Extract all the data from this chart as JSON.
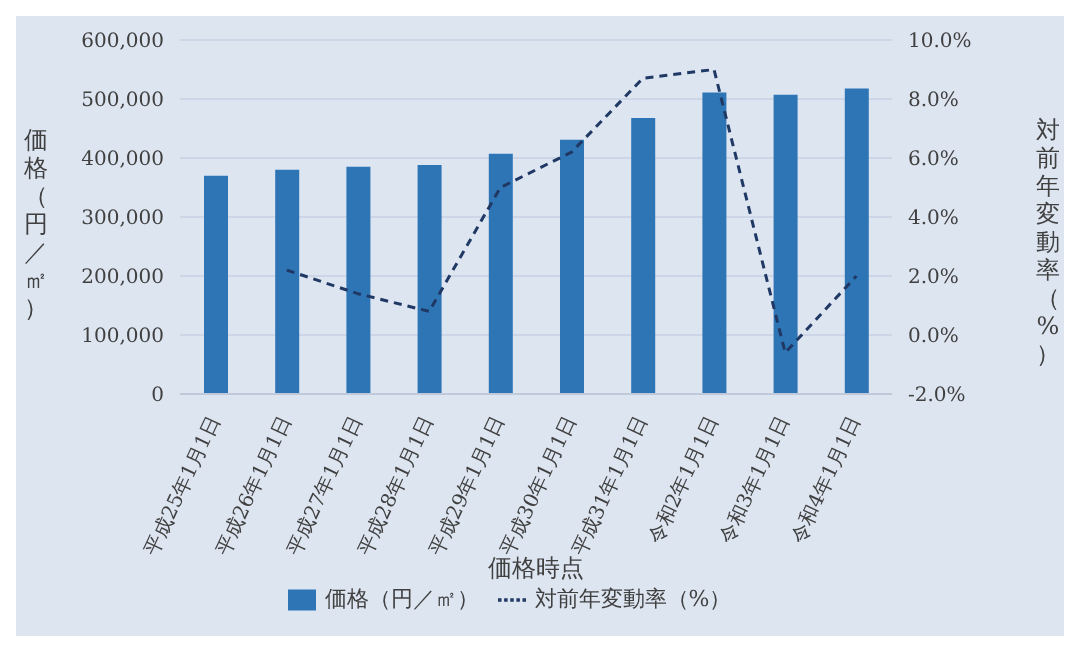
{
  "chart_data": {
    "type": "bar",
    "xlabel": "価格時点",
    "ylabel": "価格（円／㎡）",
    "y2label": "対前年変動率（%）",
    "categories": [
      "平成25年1月1日",
      "平成26年1月1日",
      "平成27年1月1日",
      "平成28年1月1日",
      "平成29年1月1日",
      "平成30年1月1日",
      "平成31年1月1日",
      "令和2年1月1日",
      "令和3年1月1日",
      "令和4年1月1日"
    ],
    "series": [
      {
        "name": "価格（円／㎡）",
        "color": "#2e75b6",
        "values": [
          370000,
          380000,
          385000,
          388000,
          407000,
          431000,
          468000,
          511000,
          507000,
          518000
        ]
      },
      {
        "name": "対前年変動率（%）",
        "type": "line",
        "axis": "y2",
        "color": "#1f3864",
        "line_style": "dashed",
        "values": [
          null,
          2.2,
          1.4,
          0.8,
          5.0,
          6.2,
          8.7,
          9.0,
          -0.6,
          2.0
        ]
      }
    ],
    "ylim": [
      0,
      600000
    ],
    "yticks": [
      {
        "value": 0,
        "label": "0"
      },
      {
        "value": 100000,
        "label": "100,000"
      },
      {
        "value": 200000,
        "label": "200,000"
      },
      {
        "value": 300000,
        "label": "300,000"
      },
      {
        "value": 400000,
        "label": "400,000"
      },
      {
        "value": 500000,
        "label": "500,000"
      },
      {
        "value": 600000,
        "label": "600,000"
      }
    ],
    "y2lim": [
      -2,
      10
    ],
    "y2ticks": [
      {
        "value": -2,
        "label": "-2.0%"
      },
      {
        "value": 0,
        "label": "0.0%"
      },
      {
        "value": 2,
        "label": "2.0%"
      },
      {
        "value": 4,
        "label": "4.0%"
      },
      {
        "value": 6,
        "label": "6.0%"
      },
      {
        "value": 8,
        "label": "8.0%"
      },
      {
        "value": 10,
        "label": "10.0%"
      }
    ],
    "grid": "y",
    "legend": "bottom",
    "marker": "none"
  }
}
